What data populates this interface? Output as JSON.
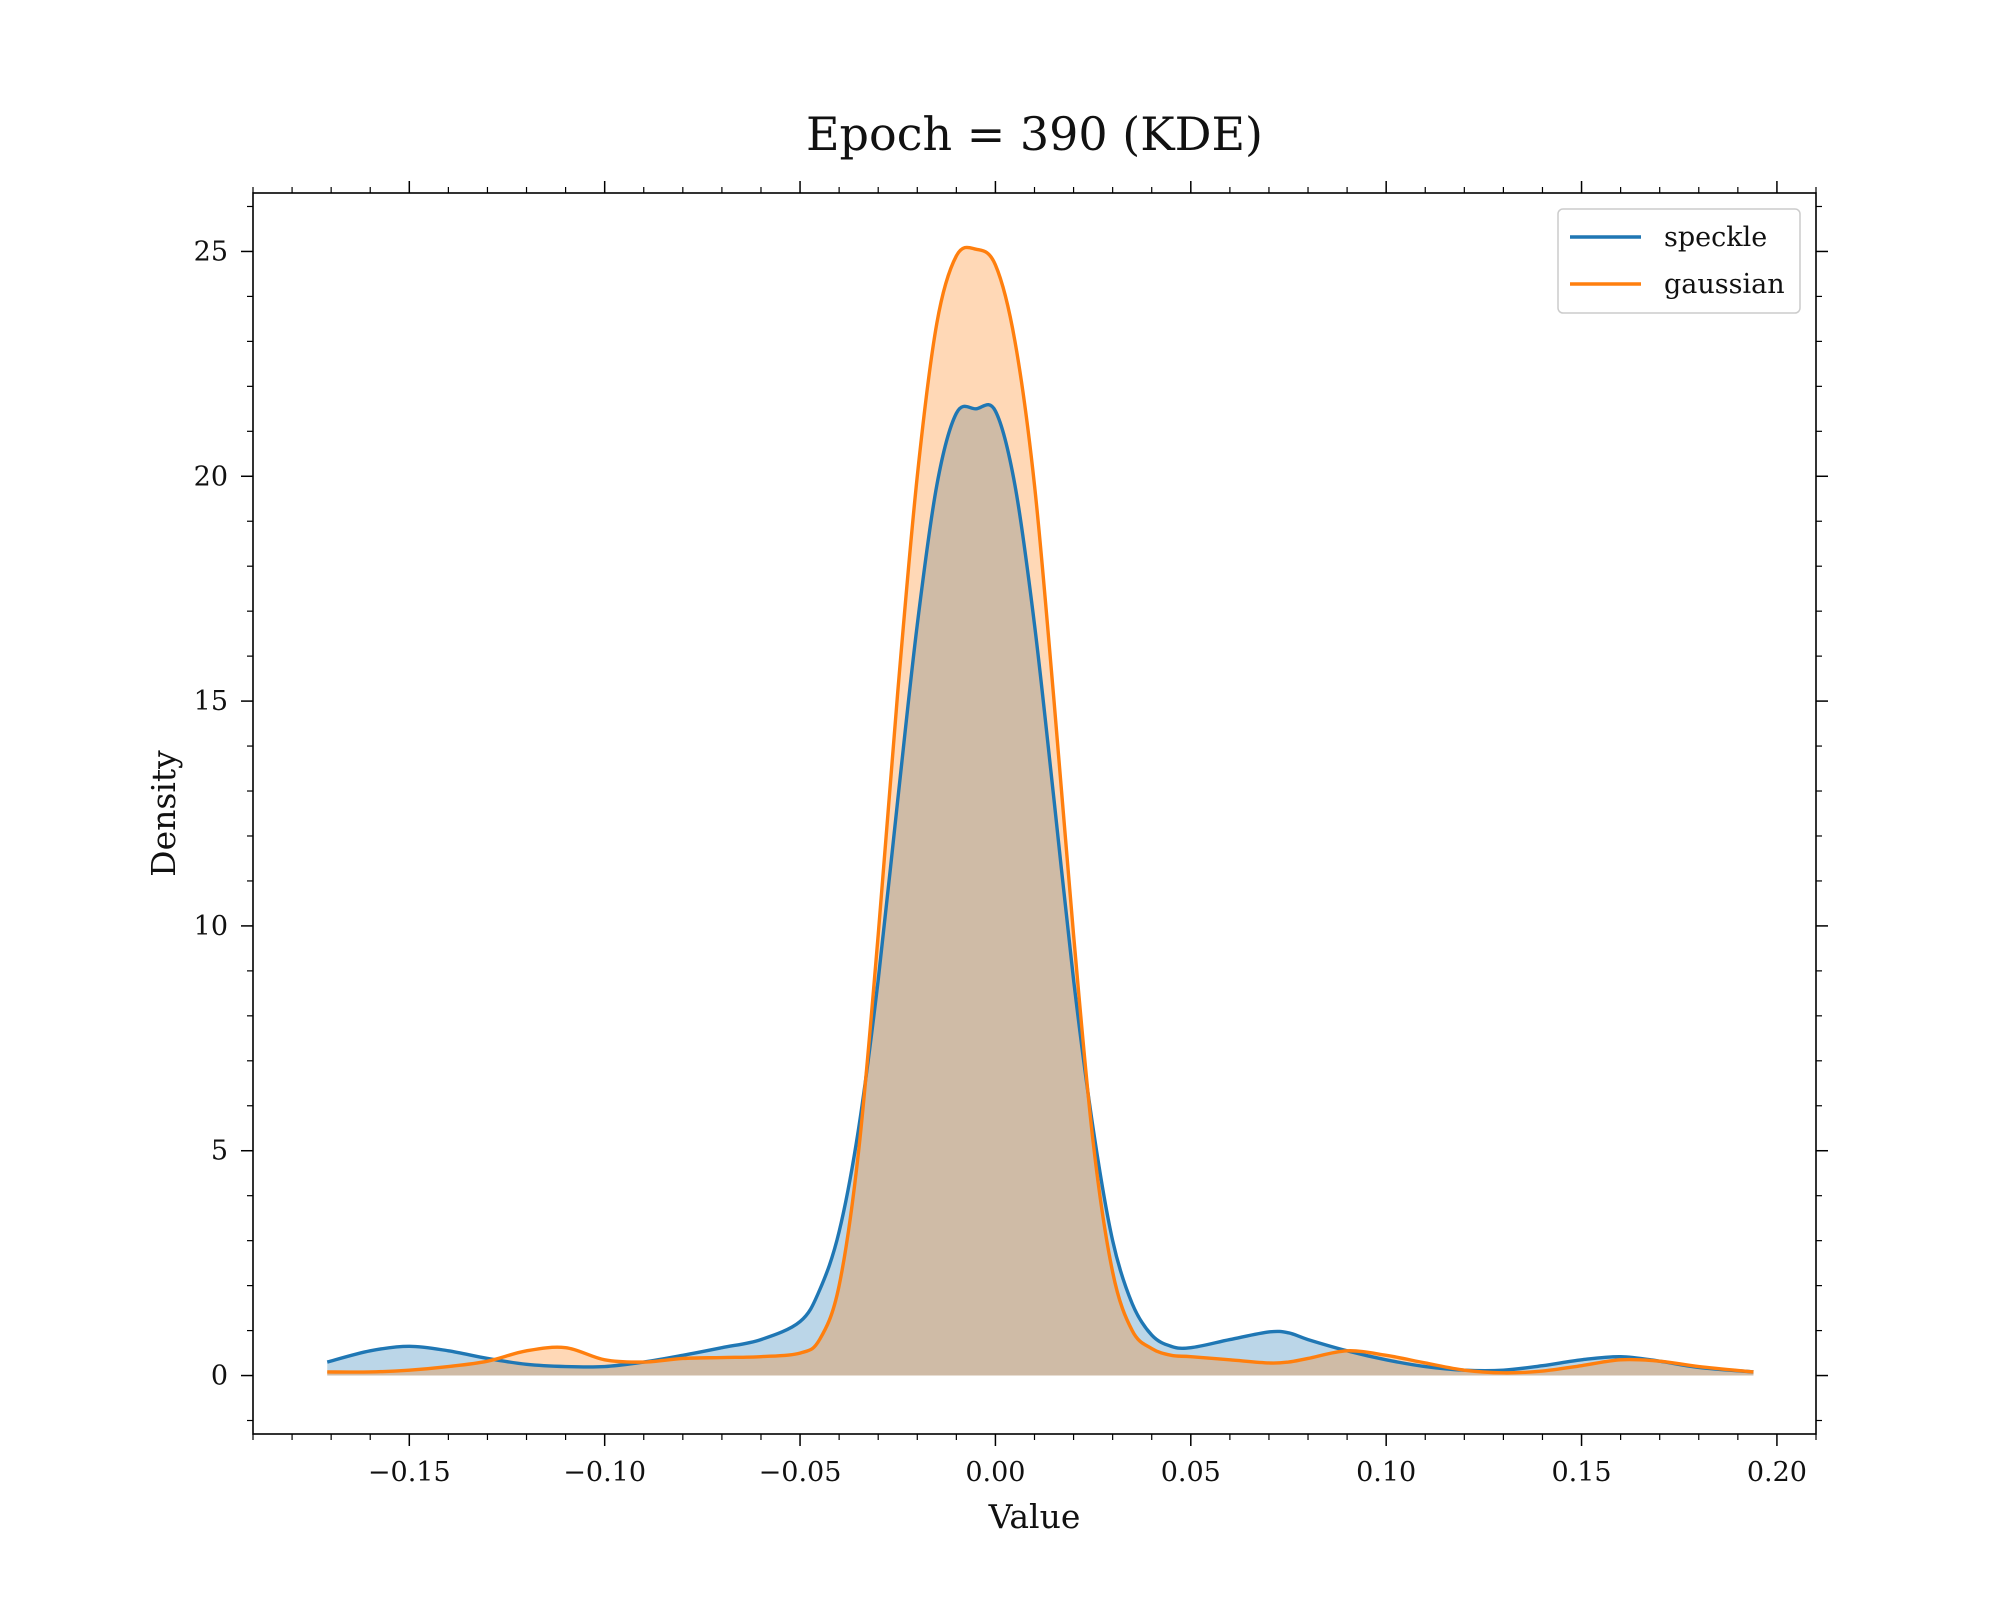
{
  "chart_data": {
    "type": "area",
    "title": "Epoch = 390 (KDE)",
    "xlabel": "Value",
    "ylabel": "Density",
    "xlim": [
      -0.19,
      0.21
    ],
    "ylim": [
      -1.3,
      26.3
    ],
    "xticks": [
      -0.15,
      -0.1,
      -0.05,
      0.0,
      0.05,
      0.1,
      0.15,
      0.2
    ],
    "xtick_labels": [
      "−0.15",
      "−0.10",
      "−0.05",
      "0.00",
      "0.05",
      "0.10",
      "0.15",
      "0.20"
    ],
    "yticks": [
      0,
      5,
      10,
      15,
      20,
      25
    ],
    "ytick_labels": [
      "0",
      "5",
      "10",
      "15",
      "20",
      "25"
    ],
    "grid": false,
    "legend_position": "top-right",
    "x": [
      -0.171,
      -0.16,
      -0.15,
      -0.14,
      -0.13,
      -0.12,
      -0.11,
      -0.1,
      -0.09,
      -0.08,
      -0.07,
      -0.06,
      -0.05,
      -0.045,
      -0.04,
      -0.035,
      -0.03,
      -0.025,
      -0.02,
      -0.015,
      -0.01,
      -0.005,
      0.0,
      0.005,
      0.01,
      0.015,
      0.02,
      0.025,
      0.03,
      0.035,
      0.04,
      0.045,
      0.05,
      0.06,
      0.07,
      0.075,
      0.08,
      0.09,
      0.1,
      0.11,
      0.12,
      0.13,
      0.14,
      0.15,
      0.16,
      0.17,
      0.18,
      0.194
    ],
    "series": [
      {
        "name": "speckle",
        "color": "#1f77b4",
        "fill": "#1f77b4",
        "values": [
          0.3,
          0.55,
          0.65,
          0.55,
          0.38,
          0.25,
          0.2,
          0.2,
          0.3,
          0.45,
          0.62,
          0.8,
          1.2,
          1.9,
          3.2,
          5.5,
          8.8,
          12.8,
          16.7,
          19.8,
          21.4,
          21.5,
          21.45,
          19.8,
          16.7,
          12.8,
          8.8,
          5.5,
          3.0,
          1.6,
          0.9,
          0.65,
          0.62,
          0.8,
          0.97,
          0.95,
          0.8,
          0.55,
          0.35,
          0.2,
          0.12,
          0.12,
          0.22,
          0.35,
          0.42,
          0.32,
          0.18,
          0.08
        ]
      },
      {
        "name": "gaussian",
        "color": "#ff7f0e",
        "fill": "#ffbb78",
        "values": [
          0.08,
          0.08,
          0.12,
          0.2,
          0.32,
          0.55,
          0.62,
          0.35,
          0.3,
          0.38,
          0.4,
          0.42,
          0.5,
          0.8,
          2.0,
          5.0,
          9.8,
          15.2,
          20.0,
          23.4,
          24.9,
          25.05,
          24.7,
          23.0,
          19.8,
          15.0,
          9.8,
          5.2,
          2.3,
          1.0,
          0.6,
          0.45,
          0.42,
          0.35,
          0.28,
          0.3,
          0.38,
          0.55,
          0.45,
          0.28,
          0.12,
          0.06,
          0.1,
          0.22,
          0.35,
          0.32,
          0.2,
          0.08
        ]
      }
    ]
  }
}
